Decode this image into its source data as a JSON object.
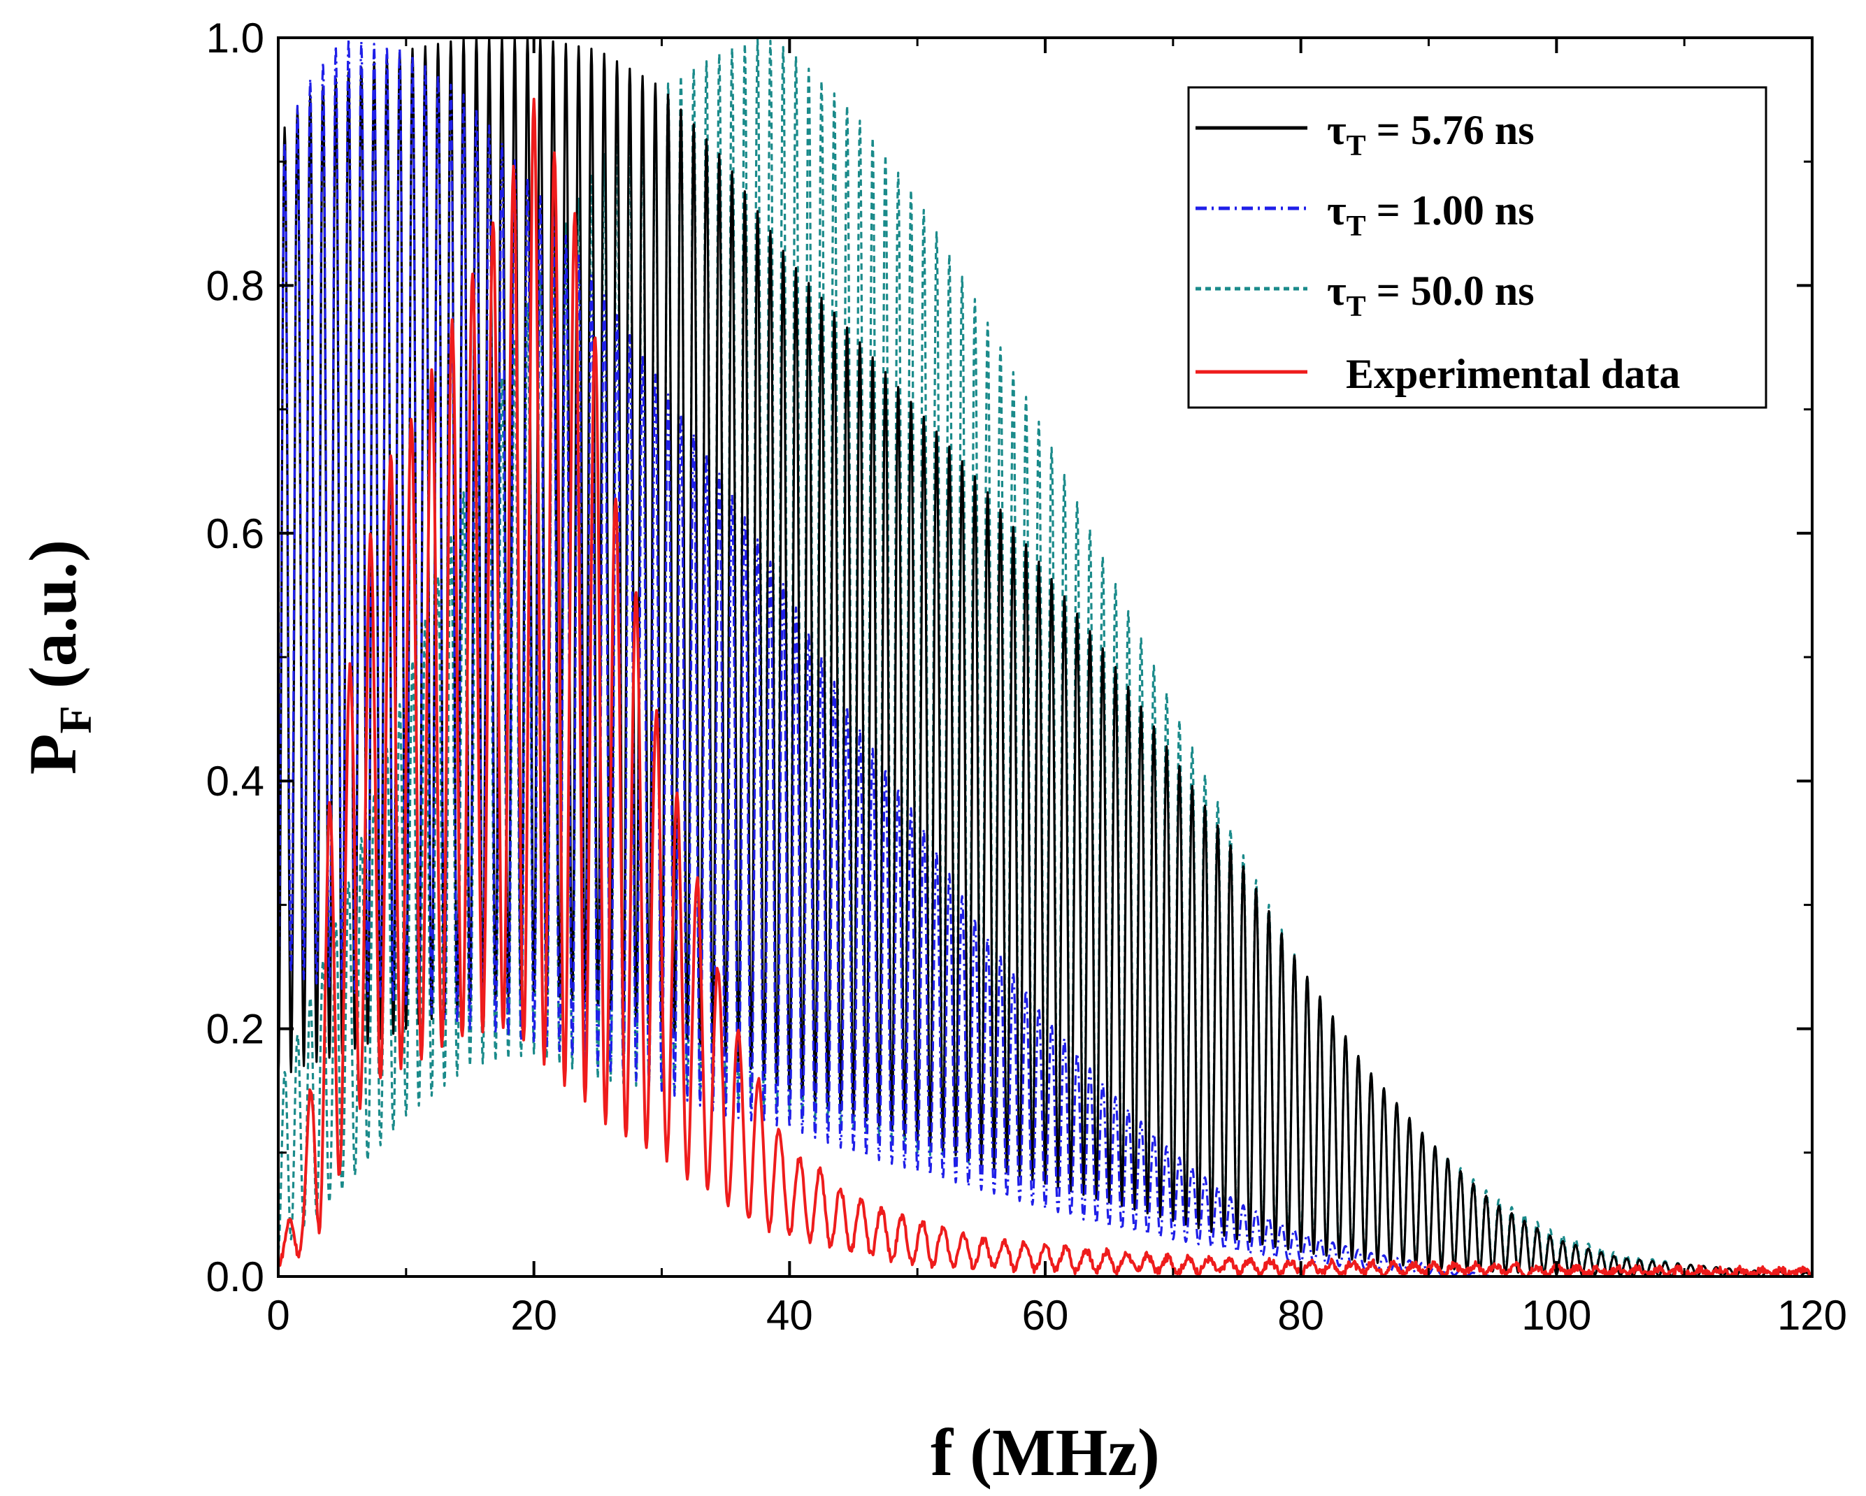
{
  "chart_data": {
    "type": "line",
    "title": "",
    "xlabel": "f (MHz)",
    "ylabel": {
      "main": "P",
      "sub": "F",
      "rest": " (a.u.)"
    },
    "xlim": [
      0,
      120
    ],
    "ylim": [
      0,
      1.0
    ],
    "xticks": [
      "0",
      "20",
      "40",
      "60",
      "80",
      "100",
      "120"
    ],
    "yticks": [
      "0.0",
      "0.2",
      "0.4",
      "0.6",
      "0.8",
      "1.0"
    ],
    "grid": false,
    "legend_position": "top-right",
    "series": [
      {
        "name": "τT = 5.76 ns",
        "label_main": "τ",
        "label_sub": "T",
        "label_rest": " = 5.76 ns",
        "color": "#000000",
        "dash": "solid",
        "oscillation_period_mhz": 1.0,
        "envelope_max": {
          "x": [
            0,
            2,
            5,
            10,
            15,
            20,
            25,
            30,
            35,
            40,
            45,
            50,
            55,
            60,
            65,
            70,
            75,
            80,
            85,
            90,
            95,
            100,
            105,
            110,
            115,
            120
          ],
          "y": [
            0.92,
            0.95,
            0.97,
            0.99,
            1.0,
            1.0,
            0.99,
            0.96,
            0.9,
            0.82,
            0.76,
            0.7,
            0.64,
            0.57,
            0.5,
            0.42,
            0.34,
            0.25,
            0.17,
            0.11,
            0.06,
            0.03,
            0.015,
            0.01,
            0.005,
            0.003
          ]
        },
        "envelope_min": {
          "x": [
            0,
            2,
            5,
            10,
            15,
            20,
            25,
            30,
            35,
            40,
            45,
            50,
            55,
            60,
            65,
            70,
            75,
            80,
            85,
            90,
            95,
            100,
            105,
            110,
            115,
            120
          ],
          "y": [
            0.16,
            0.17,
            0.18,
            0.2,
            0.22,
            0.23,
            0.22,
            0.2,
            0.18,
            0.15,
            0.13,
            0.11,
            0.09,
            0.075,
            0.06,
            0.045,
            0.03,
            0.02,
            0.012,
            0.007,
            0.004,
            0.002,
            0.001,
            0.0,
            0.0,
            0.0
          ]
        }
      },
      {
        "name": "τT = 1.00 ns",
        "label_main": "τ",
        "label_sub": "T",
        "label_rest": " = 1.00 ns",
        "color": "#1f1fe8",
        "dash": "dashdot",
        "oscillation_period_mhz": 1.0,
        "envelope_max": {
          "x": [
            0,
            2,
            5,
            10,
            15,
            20,
            25,
            30,
            35,
            40,
            45,
            50,
            55,
            60,
            65,
            70,
            75,
            80,
            85,
            90,
            95
          ],
          "y": [
            0.9,
            0.96,
            1.0,
            0.99,
            0.95,
            0.88,
            0.8,
            0.72,
            0.64,
            0.55,
            0.45,
            0.37,
            0.28,
            0.21,
            0.15,
            0.1,
            0.06,
            0.035,
            0.02,
            0.01,
            0.0
          ]
        },
        "envelope_min": {
          "x": [
            0,
            2,
            5,
            10,
            15,
            20,
            25,
            30,
            35,
            40,
            45,
            50,
            55,
            60,
            65,
            70,
            75,
            80,
            85,
            90,
            95
          ],
          "y": [
            0.25,
            0.24,
            0.23,
            0.22,
            0.2,
            0.19,
            0.17,
            0.15,
            0.13,
            0.12,
            0.1,
            0.085,
            0.07,
            0.055,
            0.04,
            0.03,
            0.02,
            0.012,
            0.006,
            0.002,
            0.0
          ]
        }
      },
      {
        "name": "τT = 50.0 ns",
        "label_main": "τ",
        "label_sub": "T",
        "label_rest": " = 50.0 ns",
        "color": "#1a8a8a",
        "dash": "dashed",
        "oscillation_period_mhz": 1.0,
        "envelope_max": {
          "x": [
            0,
            5,
            10,
            15,
            20,
            25,
            30,
            35,
            38,
            40,
            45,
            50,
            55,
            60,
            65,
            70,
            75,
            80,
            85,
            90,
            95,
            100,
            105,
            110,
            115,
            120
          ],
          "y": [
            0.15,
            0.3,
            0.48,
            0.65,
            0.8,
            0.9,
            0.96,
            0.99,
            1.0,
            0.99,
            0.94,
            0.87,
            0.78,
            0.68,
            0.57,
            0.46,
            0.35,
            0.25,
            0.17,
            0.11,
            0.065,
            0.035,
            0.018,
            0.01,
            0.005,
            0.003
          ]
        },
        "envelope_min": {
          "x": [
            0,
            5,
            10,
            15,
            20,
            25,
            30,
            35,
            40,
            45,
            50,
            55,
            60,
            65,
            70,
            75,
            80,
            85,
            90,
            95,
            100,
            105,
            110,
            115,
            120
          ],
          "y": [
            0.02,
            0.07,
            0.13,
            0.17,
            0.18,
            0.16,
            0.15,
            0.14,
            0.13,
            0.12,
            0.1,
            0.09,
            0.075,
            0.06,
            0.045,
            0.035,
            0.025,
            0.015,
            0.01,
            0.006,
            0.003,
            0.0015,
            0.001,
            0.0,
            0.0
          ]
        }
      },
      {
        "name": "Experimental data",
        "label_main": "Experimental data",
        "label_sub": "",
        "label_rest": "",
        "color": "#ee1c1c",
        "dash": "solid",
        "oscillation_period_mhz": 1.6,
        "envelope_max": {
          "x": [
            0,
            2,
            4,
            6,
            8,
            10,
            12,
            14,
            16,
            18,
            20,
            22,
            24,
            26,
            28,
            30,
            32,
            34,
            36,
            38,
            40,
            42,
            44,
            46,
            48,
            50,
            55,
            60,
            65,
            70,
            80,
            90,
            100,
            110,
            120
          ],
          "y": [
            0.02,
            0.08,
            0.38,
            0.52,
            0.65,
            0.68,
            0.73,
            0.78,
            0.83,
            0.88,
            0.95,
            0.9,
            0.83,
            0.65,
            0.55,
            0.43,
            0.36,
            0.26,
            0.2,
            0.15,
            0.1,
            0.09,
            0.07,
            0.06,
            0.05,
            0.045,
            0.03,
            0.025,
            0.02,
            0.015,
            0.012,
            0.01,
            0.008,
            0.006,
            0.005
          ]
        },
        "envelope_min": {
          "x": [
            0,
            2,
            4,
            6,
            8,
            10,
            12,
            14,
            16,
            18,
            20,
            22,
            24,
            26,
            28,
            30,
            32,
            34,
            36,
            38,
            40,
            45,
            50,
            60,
            80,
            100,
            120
          ],
          "y": [
            0.01,
            0.02,
            0.05,
            0.13,
            0.16,
            0.17,
            0.18,
            0.19,
            0.2,
            0.2,
            0.18,
            0.16,
            0.14,
            0.12,
            0.11,
            0.1,
            0.08,
            0.07,
            0.05,
            0.04,
            0.035,
            0.02,
            0.01,
            0.005,
            0.003,
            0.002,
            0.001
          ]
        }
      }
    ]
  }
}
